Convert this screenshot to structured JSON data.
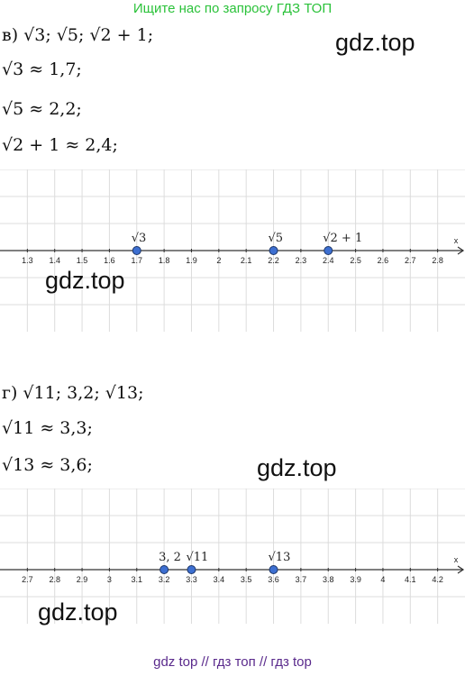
{
  "header": "Ищите нас по запросу ГДЗ ТОП",
  "watermarks": [
    "gdz.top",
    "gdz.top",
    "gdz.top",
    "gdz.top"
  ],
  "part_v": {
    "task": "в) √3; √5; √2 + 1;",
    "approx": [
      "√3 ≈ 1,7;",
      "√5 ≈ 2,2;",
      "√2 + 1 ≈ 2,4;"
    ],
    "number_line": {
      "axis_label": "x",
      "xlim": [
        1.2,
        2.9
      ],
      "xticks": [
        1.3,
        1.4,
        1.5,
        1.6,
        1.7,
        1.8,
        1.9,
        2,
        2.1,
        2.2,
        2.3,
        2.4,
        2.5,
        2.6,
        2.7,
        2.8
      ],
      "points": [
        {
          "label": "√3",
          "x": 1.7
        },
        {
          "label": "√5",
          "x": 2.2
        },
        {
          "label": "√2 + 1",
          "x": 2.4
        }
      ]
    }
  },
  "part_g": {
    "task": "г) √11; 3,2; √13;",
    "approx": [
      "√11 ≈ 3,3;",
      "√13 ≈ 3,6;"
    ],
    "number_line": {
      "axis_label": "x",
      "xlim": [
        2.6,
        4.3
      ],
      "xticks": [
        2.7,
        2.8,
        2.9,
        3,
        3.1,
        3.2,
        3.3,
        3.4,
        3.5,
        3.6,
        3.7,
        3.8,
        3.9,
        4,
        4.1,
        4.2
      ],
      "points": [
        {
          "label": "3, 2",
          "x": 3.2
        },
        {
          "label": "√11",
          "x": 3.3
        },
        {
          "label": "√13",
          "x": 3.6
        }
      ]
    }
  },
  "footer": "gdz top  //  гдз топ  //  гдз top"
}
